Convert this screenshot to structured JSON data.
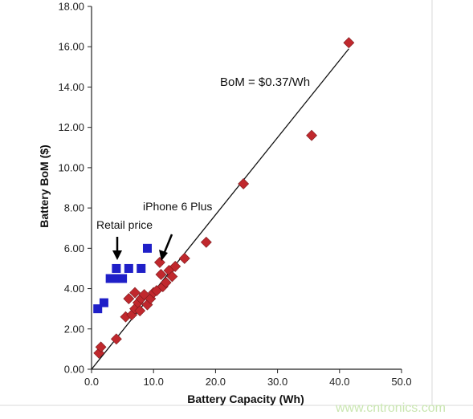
{
  "chart_data": {
    "type": "scatter",
    "xlabel": "Battery Capacity (Wh)",
    "ylabel": "Battery BoM  ($)",
    "xlim": [
      0,
      50
    ],
    "ylim": [
      0,
      18
    ],
    "x_ticks": [
      "0.0",
      "10.0",
      "20.0",
      "30.0",
      "40.0",
      "50.0"
    ],
    "y_ticks": [
      "0.00",
      "2.00",
      "4.00",
      "6.00",
      "8.00",
      "10.00",
      "12.00",
      "14.00",
      "16.00",
      "18.00"
    ],
    "grid": false,
    "legend": "none",
    "series": [
      {
        "marker": "square",
        "color": "#1f1fc8",
        "points": [
          [
            1.0,
            3.0
          ],
          [
            2.0,
            3.3
          ],
          [
            3.0,
            4.5
          ],
          [
            4.0,
            5.0
          ],
          [
            4.0,
            4.5
          ],
          [
            5.0,
            4.5
          ],
          [
            6.0,
            5.0
          ],
          [
            8.0,
            5.0
          ],
          [
            9.0,
            6.0
          ]
        ]
      },
      {
        "marker": "diamond",
        "color": "#c0282d",
        "points": [
          [
            1.2,
            0.8
          ],
          [
            1.5,
            1.1
          ],
          [
            4.0,
            1.5
          ],
          [
            5.5,
            2.6
          ],
          [
            6.0,
            3.5
          ],
          [
            6.5,
            2.7
          ],
          [
            7.0,
            3.0
          ],
          [
            7.0,
            3.8
          ],
          [
            7.5,
            3.3
          ],
          [
            7.8,
            2.9
          ],
          [
            8.0,
            3.5
          ],
          [
            8.5,
            3.7
          ],
          [
            9.0,
            3.2
          ],
          [
            9.5,
            3.5
          ],
          [
            10.0,
            3.8
          ],
          [
            10.5,
            3.9
          ],
          [
            11.0,
            5.3
          ],
          [
            11.2,
            4.7
          ],
          [
            11.5,
            4.1
          ],
          [
            12.0,
            4.3
          ],
          [
            12.5,
            4.9
          ],
          [
            13.0,
            4.6
          ],
          [
            13.5,
            5.1
          ],
          [
            15.0,
            5.5
          ],
          [
            18.5,
            6.3
          ],
          [
            24.5,
            9.2
          ],
          [
            35.5,
            11.6
          ],
          [
            41.5,
            16.2
          ]
        ]
      }
    ],
    "trendline": {
      "label": "BoM = $0.37/Wh",
      "from": [
        0,
        0
      ],
      "to": [
        41.5,
        15.9
      ]
    },
    "annotations": [
      {
        "text": "Retail price"
      },
      {
        "text": "iPhone 6 Plus"
      }
    ]
  },
  "watermark": "www.cntronics.com"
}
